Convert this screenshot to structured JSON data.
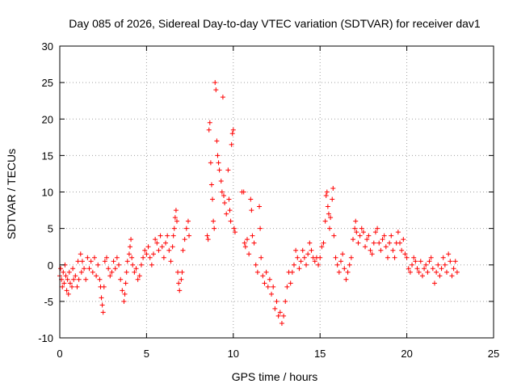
{
  "chart_data": {
    "type": "scatter",
    "title": "Day 085 of 2026, Sidereal Day-to-day VTEC variation (SDTVAR) for receiver dav1",
    "xlabel": "GPS time / hours",
    "ylabel": "SDTVAR / TECUs",
    "xlim": [
      0,
      25
    ],
    "ylim": [
      -10,
      30
    ],
    "xticks": [
      0,
      5,
      10,
      15,
      20,
      25
    ],
    "yticks": [
      -10,
      -5,
      0,
      5,
      10,
      15,
      20,
      25,
      30
    ],
    "grid": true,
    "marker": "+",
    "series": [
      {
        "name": "SDTVAR",
        "color": "#ff0000",
        "points": [
          [
            0.0,
            -1.5
          ],
          [
            0.05,
            -0.5
          ],
          [
            0.1,
            -2
          ],
          [
            0.15,
            -3
          ],
          [
            0.2,
            -1
          ],
          [
            0.25,
            -2.5
          ],
          [
            0.3,
            0
          ],
          [
            0.35,
            -1.5
          ],
          [
            0.4,
            -3.5
          ],
          [
            0.45,
            -2
          ],
          [
            0.5,
            -4
          ],
          [
            0.55,
            -1
          ],
          [
            0.6,
            -2.5
          ],
          [
            0.7,
            -3
          ],
          [
            0.75,
            -0.5
          ],
          [
            0.8,
            -2
          ],
          [
            0.9,
            -1.5
          ],
          [
            1.0,
            -3
          ],
          [
            1.05,
            0.5
          ],
          [
            1.1,
            -2
          ],
          [
            1.2,
            1.5
          ],
          [
            1.25,
            -1
          ],
          [
            1.3,
            0.5
          ],
          [
            1.4,
            -0.5
          ],
          [
            1.5,
            -2
          ],
          [
            1.6,
            1
          ],
          [
            1.7,
            -0.5
          ],
          [
            1.8,
            0.5
          ],
          [
            1.9,
            -1
          ],
          [
            2.0,
            1
          ],
          [
            2.1,
            -1.5
          ],
          [
            2.2,
            0
          ],
          [
            2.3,
            -2
          ],
          [
            2.35,
            -3
          ],
          [
            2.4,
            -4.5
          ],
          [
            2.45,
            -5.5
          ],
          [
            2.5,
            -6.5
          ],
          [
            2.55,
            -3
          ],
          [
            2.6,
            0.5
          ],
          [
            2.7,
            1
          ],
          [
            2.8,
            -0.5
          ],
          [
            2.9,
            -1.5
          ],
          [
            3.0,
            -1
          ],
          [
            3.1,
            0.5
          ],
          [
            3.2,
            -0.5
          ],
          [
            3.3,
            1
          ],
          [
            3.4,
            0
          ],
          [
            3.5,
            -2
          ],
          [
            3.6,
            -3.5
          ],
          [
            3.7,
            -5
          ],
          [
            3.75,
            -4
          ],
          [
            3.8,
            -2.5
          ],
          [
            3.85,
            -1
          ],
          [
            3.9,
            0.5
          ],
          [
            4.0,
            1.5
          ],
          [
            4.05,
            2.5
          ],
          [
            4.1,
            3.5
          ],
          [
            4.15,
            1
          ],
          [
            4.2,
            0
          ],
          [
            4.3,
            -1
          ],
          [
            4.4,
            -0.5
          ],
          [
            4.5,
            -2
          ],
          [
            4.6,
            -1.5
          ],
          [
            4.7,
            0
          ],
          [
            4.8,
            1
          ],
          [
            4.9,
            2
          ],
          [
            5.0,
            1.5
          ],
          [
            5.1,
            2.5
          ],
          [
            5.2,
            1
          ],
          [
            5.3,
            0
          ],
          [
            5.4,
            1.5
          ],
          [
            5.5,
            3.5
          ],
          [
            5.6,
            3
          ],
          [
            5.7,
            2
          ],
          [
            5.8,
            4
          ],
          [
            5.9,
            2.5
          ],
          [
            6.0,
            1
          ],
          [
            6.1,
            3
          ],
          [
            6.2,
            4
          ],
          [
            6.3,
            2
          ],
          [
            6.4,
            0.5
          ],
          [
            6.5,
            2.5
          ],
          [
            6.55,
            4
          ],
          [
            6.6,
            5
          ],
          [
            6.65,
            6.5
          ],
          [
            6.7,
            7.5
          ],
          [
            6.75,
            6
          ],
          [
            6.8,
            -1
          ],
          [
            6.85,
            -2.5
          ],
          [
            6.9,
            -3.5
          ],
          [
            7.0,
            -2
          ],
          [
            7.05,
            -1
          ],
          [
            7.1,
            2
          ],
          [
            7.2,
            3.5
          ],
          [
            7.3,
            5
          ],
          [
            7.4,
            6
          ],
          [
            7.45,
            4
          ],
          [
            8.5,
            4
          ],
          [
            8.55,
            3.5
          ],
          [
            8.6,
            18.5
          ],
          [
            8.65,
            19.5
          ],
          [
            8.7,
            14
          ],
          [
            8.75,
            11
          ],
          [
            8.8,
            9
          ],
          [
            8.85,
            6
          ],
          [
            8.9,
            5
          ],
          [
            8.95,
            25
          ],
          [
            9.0,
            24
          ],
          [
            9.05,
            17
          ],
          [
            9.1,
            15
          ],
          [
            9.15,
            14
          ],
          [
            9.2,
            13
          ],
          [
            9.3,
            11.5
          ],
          [
            9.35,
            10
          ],
          [
            9.4,
            23
          ],
          [
            9.45,
            9.5
          ],
          [
            9.5,
            8.5
          ],
          [
            9.6,
            7
          ],
          [
            9.7,
            13
          ],
          [
            9.75,
            9
          ],
          [
            9.8,
            7.5
          ],
          [
            9.85,
            6
          ],
          [
            9.9,
            16.5
          ],
          [
            9.95,
            18
          ],
          [
            10.0,
            18.5
          ],
          [
            10.05,
            5
          ],
          [
            10.1,
            4.5
          ],
          [
            10.5,
            10
          ],
          [
            10.6,
            10
          ],
          [
            10.65,
            3
          ],
          [
            10.7,
            2.5
          ],
          [
            10.8,
            3.5
          ],
          [
            10.9,
            1.5
          ],
          [
            11.0,
            9
          ],
          [
            11.05,
            7.5
          ],
          [
            11.1,
            4
          ],
          [
            11.2,
            3
          ],
          [
            11.3,
            0
          ],
          [
            11.4,
            -1
          ],
          [
            11.5,
            8
          ],
          [
            11.55,
            5
          ],
          [
            11.6,
            1
          ],
          [
            11.7,
            -1.5
          ],
          [
            11.8,
            -2.5
          ],
          [
            11.9,
            -1
          ],
          [
            12.0,
            -3
          ],
          [
            12.1,
            -2
          ],
          [
            12.2,
            -4
          ],
          [
            12.3,
            -3
          ],
          [
            12.4,
            -6
          ],
          [
            12.5,
            -5
          ],
          [
            12.6,
            -7
          ],
          [
            12.7,
            -6.5
          ],
          [
            12.8,
            -8
          ],
          [
            12.9,
            -7
          ],
          [
            13.0,
            -5
          ],
          [
            13.1,
            -3
          ],
          [
            13.2,
            -1
          ],
          [
            13.3,
            -2.5
          ],
          [
            13.4,
            -1
          ],
          [
            13.5,
            0
          ],
          [
            13.6,
            2
          ],
          [
            13.7,
            1
          ],
          [
            13.8,
            -0.5
          ],
          [
            13.9,
            0.5
          ],
          [
            14.0,
            2
          ],
          [
            14.1,
            1
          ],
          [
            14.2,
            0
          ],
          [
            14.3,
            1.5
          ],
          [
            14.4,
            3
          ],
          [
            14.5,
            2
          ],
          [
            14.6,
            1
          ],
          [
            14.7,
            0.5
          ],
          [
            14.8,
            1
          ],
          [
            14.9,
            0
          ],
          [
            15.0,
            1
          ],
          [
            15.1,
            2.5
          ],
          [
            15.2,
            3
          ],
          [
            15.3,
            6
          ],
          [
            15.35,
            9.5
          ],
          [
            15.4,
            10
          ],
          [
            15.45,
            8
          ],
          [
            15.5,
            7
          ],
          [
            15.55,
            5
          ],
          [
            15.6,
            6.5
          ],
          [
            15.7,
            9
          ],
          [
            15.75,
            10.5
          ],
          [
            15.8,
            4
          ],
          [
            15.9,
            1
          ],
          [
            16.0,
            0
          ],
          [
            16.1,
            -1
          ],
          [
            16.2,
            0.5
          ],
          [
            16.3,
            1.5
          ],
          [
            16.4,
            -0.5
          ],
          [
            16.5,
            -2
          ],
          [
            16.6,
            -1
          ],
          [
            16.7,
            0
          ],
          [
            16.8,
            1
          ],
          [
            16.9,
            3.5
          ],
          [
            17.0,
            5
          ],
          [
            17.05,
            6
          ],
          [
            17.1,
            4.5
          ],
          [
            17.2,
            3
          ],
          [
            17.3,
            4
          ],
          [
            17.4,
            5
          ],
          [
            17.5,
            4.5
          ],
          [
            17.6,
            2.5
          ],
          [
            17.7,
            3.5
          ],
          [
            17.8,
            4
          ],
          [
            17.9,
            2
          ],
          [
            18.0,
            1.5
          ],
          [
            18.1,
            3
          ],
          [
            18.2,
            4.5
          ],
          [
            18.3,
            5
          ],
          [
            18.4,
            3
          ],
          [
            18.5,
            2
          ],
          [
            18.6,
            3.5
          ],
          [
            18.7,
            4
          ],
          [
            18.8,
            2.5
          ],
          [
            18.9,
            1
          ],
          [
            19.0,
            3
          ],
          [
            19.1,
            4
          ],
          [
            19.2,
            2
          ],
          [
            19.3,
            1
          ],
          [
            19.4,
            3
          ],
          [
            19.5,
            4.5
          ],
          [
            19.6,
            3
          ],
          [
            19.7,
            2
          ],
          [
            19.8,
            3.5
          ],
          [
            19.9,
            1.5
          ],
          [
            20.0,
            1
          ],
          [
            20.1,
            -0.5
          ],
          [
            20.2,
            -1
          ],
          [
            20.3,
            0
          ],
          [
            20.4,
            1
          ],
          [
            20.5,
            0.5
          ],
          [
            20.6,
            -0.5
          ],
          [
            20.7,
            -1
          ],
          [
            20.8,
            0.5
          ],
          [
            20.9,
            -1.5
          ],
          [
            21.0,
            -0.5
          ],
          [
            21.1,
            0
          ],
          [
            21.2,
            -1
          ],
          [
            21.3,
            0.5
          ],
          [
            21.4,
            1
          ],
          [
            21.5,
            -0.5
          ],
          [
            21.6,
            -2.5
          ],
          [
            21.7,
            -1
          ],
          [
            21.8,
            0
          ],
          [
            21.9,
            -1.5
          ],
          [
            22.0,
            -0.5
          ],
          [
            22.1,
            1
          ],
          [
            22.2,
            0
          ],
          [
            22.3,
            -1
          ],
          [
            22.4,
            1.5
          ],
          [
            22.5,
            0.5
          ],
          [
            22.6,
            -1.5
          ],
          [
            22.7,
            -0.5
          ],
          [
            22.8,
            0.5
          ],
          [
            22.9,
            -1
          ]
        ]
      }
    ]
  }
}
